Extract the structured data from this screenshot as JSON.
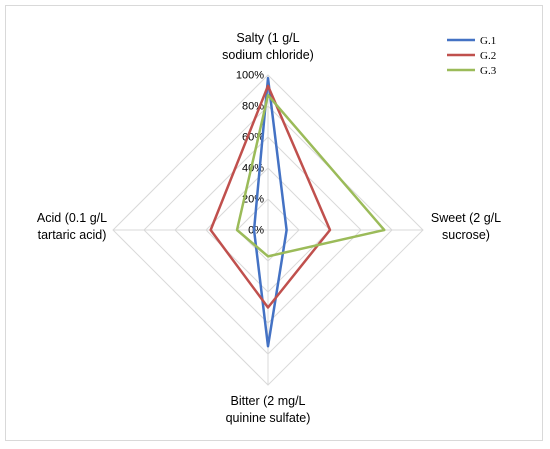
{
  "chart_data": {
    "type": "radar",
    "axes": [
      {
        "id": "salty",
        "lines": [
          "Salty (1 g/L",
          "sodium chloride)"
        ]
      },
      {
        "id": "sweet",
        "lines": [
          "Sweet (2 g/L",
          "sucrose)"
        ]
      },
      {
        "id": "bitter",
        "lines": [
          "Bitter (2 mg/L",
          "quinine sulfate)"
        ]
      },
      {
        "id": "acid",
        "lines": [
          "Acid (0.1 g/L",
          "tartaric acid)"
        ]
      }
    ],
    "ticks": [
      "0%",
      "20%",
      "40%",
      "60%",
      "80%",
      "100%"
    ],
    "range": [
      0,
      100
    ],
    "grid": true,
    "legend_position": "top-right",
    "series": [
      {
        "name": "G.1",
        "color": "#4472C4",
        "values": [
          98,
          12,
          75,
          9
        ]
      },
      {
        "name": "G.2",
        "color": "#C0504D",
        "values": [
          93,
          40,
          50,
          37
        ]
      },
      {
        "name": "G.3",
        "color": "#9BBB59",
        "values": [
          87,
          75,
          17,
          20
        ]
      }
    ]
  }
}
